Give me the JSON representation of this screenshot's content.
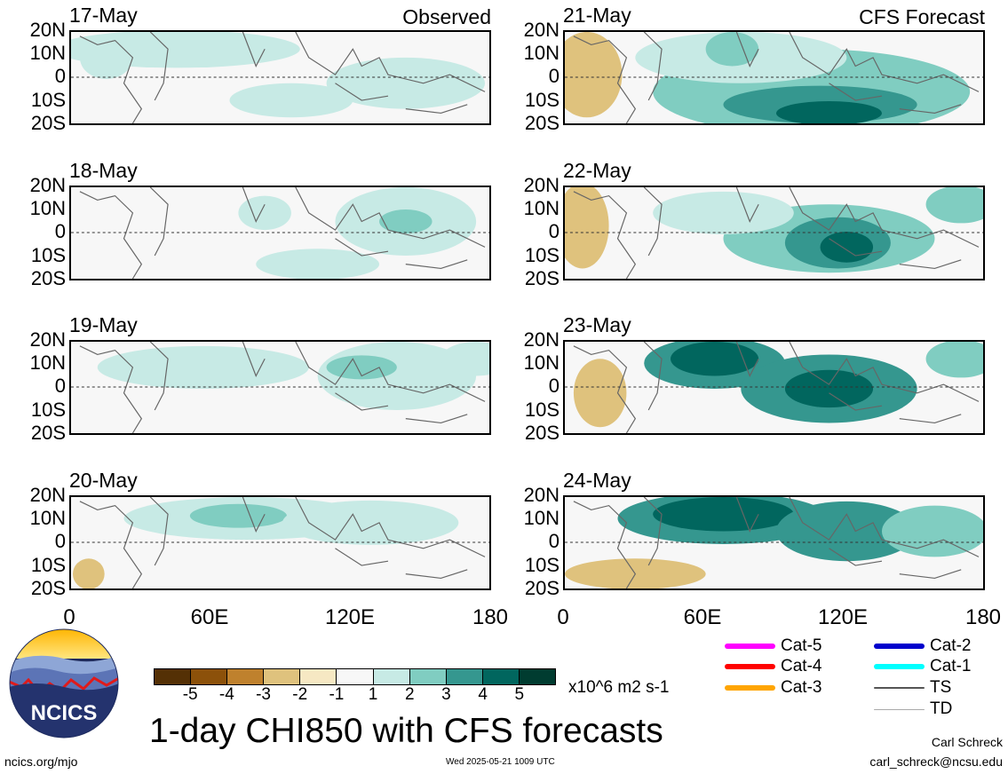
{
  "panels": [
    {
      "date": "17-May",
      "tag": "Observed",
      "col": 0,
      "row": 0
    },
    {
      "date": "18-May",
      "tag": "",
      "col": 0,
      "row": 1
    },
    {
      "date": "19-May",
      "tag": "",
      "col": 0,
      "row": 2
    },
    {
      "date": "20-May",
      "tag": "",
      "col": 0,
      "row": 3
    },
    {
      "date": "21-May",
      "tag": "CFS Forecast",
      "col": 1,
      "row": 0
    },
    {
      "date": "22-May",
      "tag": "",
      "col": 1,
      "row": 1
    },
    {
      "date": "23-May",
      "tag": "",
      "col": 1,
      "row": 2
    },
    {
      "date": "24-May",
      "tag": "",
      "col": 1,
      "row": 3
    }
  ],
  "lat_labels": [
    "20N",
    "10N",
    "0",
    "10S",
    "20S"
  ],
  "lon_labels": [
    "0",
    "60E",
    "120E",
    "180"
  ],
  "colorbar": {
    "colors": [
      "#543005",
      "#8c510a",
      "#bf812d",
      "#dfc27d",
      "#f6e8c3",
      "#f7f7f7",
      "#c7eae5",
      "#80cdc1",
      "#35978f",
      "#01665e",
      "#003c30"
    ],
    "labels": [
      "-5",
      "-4",
      "-3",
      "-2",
      "-1",
      "1",
      "2",
      "3",
      "4",
      "5"
    ],
    "units": "x10^6 m2 s-1"
  },
  "legend": [
    {
      "label": "Cat-5",
      "color": "#ff00ff"
    },
    {
      "label": "Cat-4",
      "color": "#ff0000"
    },
    {
      "label": "Cat-3",
      "color": "#ffa500"
    },
    {
      "label": "Cat-2",
      "color": "#0000cc"
    },
    {
      "label": "Cat-1",
      "color": "#00ffff"
    },
    {
      "label": "TS",
      "color": "#555555"
    },
    {
      "label": "TD",
      "color": "#aaaaaa"
    }
  ],
  "title": "1-day CHI850 with CFS forecasts",
  "footer": {
    "url": "ncics.org/mjo",
    "timestamp": "Wed 2025-05-21 1009 UTC",
    "author": "Carl Schreck",
    "email": "carl_schreck@ncsu.edu"
  },
  "logo_text": "NCICS"
}
